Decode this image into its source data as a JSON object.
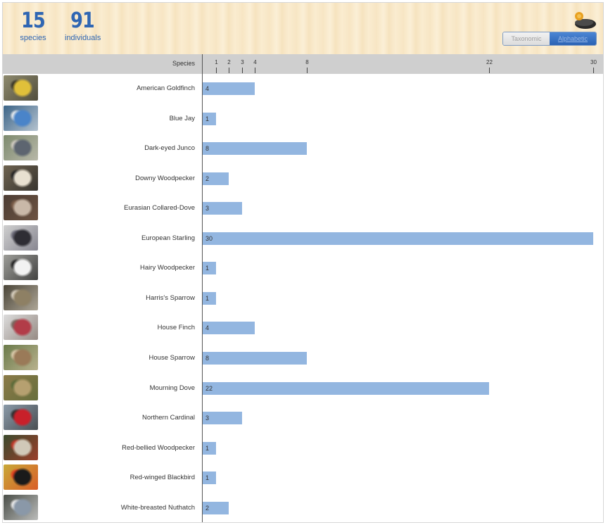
{
  "summary": {
    "species_count": "15",
    "species_label": "species",
    "individuals_count": "91",
    "individuals_label": "individuals"
  },
  "sort_toggle": {
    "options": [
      "Taxonomic",
      "Alphabetic"
    ],
    "selected": "Alphabetic"
  },
  "colors": {
    "bar": "#93b6e0",
    "accent": "#2f66b3",
    "header_wood": "#f8e7c6",
    "axis_band": "#cfcfcf"
  },
  "chart_data": {
    "type": "bar",
    "orientation": "horizontal",
    "category_header": "Species",
    "categories": [
      "American Goldfinch",
      "Blue Jay",
      "Dark-eyed Junco",
      "Downy Woodpecker",
      "Eurasian Collared-Dove",
      "European Starling",
      "Hairy Woodpecker",
      "Harris's Sparrow",
      "House Finch",
      "House Sparrow",
      "Mourning Dove",
      "Northern Cardinal",
      "Red-bellied Woodpecker",
      "Red-winged Blackbird",
      "White-breasted Nuthatch"
    ],
    "values": [
      4,
      1,
      8,
      2,
      3,
      30,
      1,
      1,
      4,
      8,
      22,
      3,
      1,
      1,
      2
    ],
    "ticks": [
      1,
      2,
      3,
      4,
      8,
      22,
      30
    ],
    "xlim": [
      0,
      30
    ],
    "grid": false,
    "data_labels": true,
    "thumbnail_colors": [
      [
        "#8e8a6e",
        "#e0c03a",
        "#3a3628"
      ],
      [
        "#3c6487",
        "#4a84c9",
        "#e4e8ec"
      ],
      [
        "#7d8a6e",
        "#5d6570",
        "#cfcac0"
      ],
      [
        "#6e6350",
        "#e8e0d0",
        "#222222"
      ],
      [
        "#4c3d34",
        "#c9b8a8",
        "#7a5c48"
      ],
      [
        "#cfcfcf",
        "#2e2d34",
        "#6b6a78"
      ],
      [
        "#9d9d98",
        "#f2f2f2",
        "#202020"
      ],
      [
        "#4a4538",
        "#8e8064",
        "#d6cdbd"
      ],
      [
        "#dcdcdc",
        "#b23c48",
        "#7a6a60"
      ],
      [
        "#6a7a4a",
        "#9a7a58",
        "#d8c8a8"
      ],
      [
        "#8a7a48",
        "#b6a070",
        "#5a6a38"
      ],
      [
        "#8a9aa8",
        "#c8202a",
        "#303030"
      ],
      [
        "#3a4a2c",
        "#d0c8b8",
        "#c23a2a"
      ],
      [
        "#c8a838",
        "#1a1a1a",
        "#e04020"
      ],
      [
        "#4a4e48",
        "#8a98a8",
        "#e8e8e8"
      ]
    ]
  }
}
